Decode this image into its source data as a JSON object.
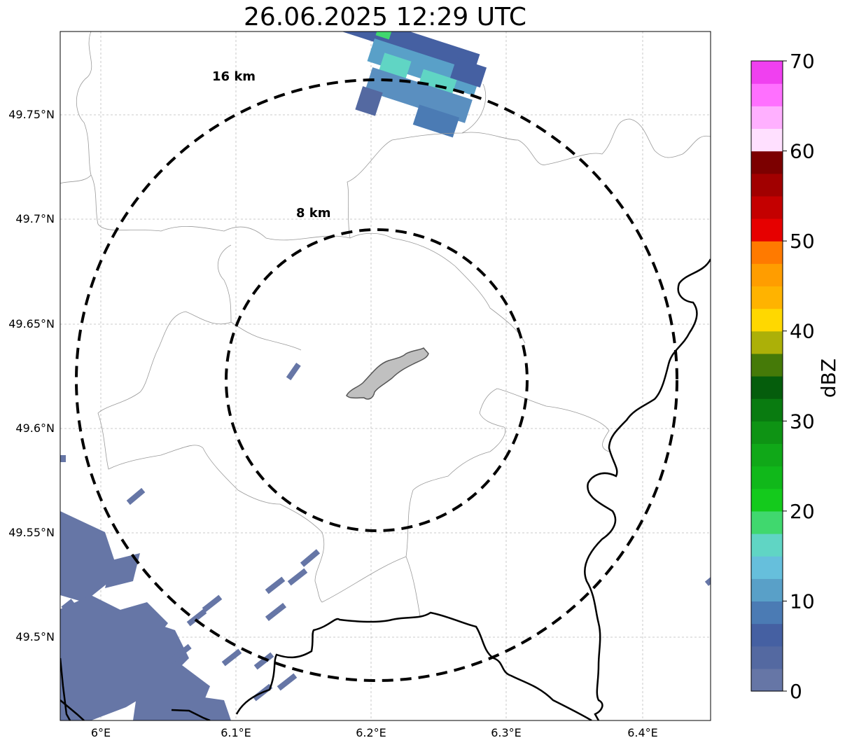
{
  "title": "26.06.2025 12:29 UTC",
  "map": {
    "lon_ticks": [
      "6°E",
      "6.1°E",
      "6.2°E",
      "6.3°E",
      "6.4°E"
    ],
    "lat_ticks": [
      "49.75°N",
      "49.7°N",
      "49.65°N",
      "49.6°N",
      "49.55°N",
      "49.5°N"
    ],
    "range_rings": [
      {
        "label": "16 km",
        "radius_km": 16
      },
      {
        "label": "8 km",
        "radius_km": 8
      }
    ],
    "radar_site_lon": 6.2,
    "radar_site_lat": 49.62,
    "gridlines": true,
    "colors": {
      "border": "#000000",
      "admin": "#999999",
      "town_fill": "#c0c0c0"
    }
  },
  "colorbar": {
    "label": "dBZ",
    "ticks": [
      "0",
      "10",
      "20",
      "30",
      "40",
      "50",
      "60",
      "70"
    ],
    "min": 0,
    "max": 70,
    "step": 2.5,
    "colors": [
      "#6676a6",
      "#5469a1",
      "#4560a2",
      "#4b7bb4",
      "#59a0c8",
      "#66bfdc",
      "#60d5c4",
      "#40d86e",
      "#14ca1c",
      "#10b81a",
      "#10a818",
      "#0e9314",
      "#097b10",
      "#055d0c",
      "#457a08",
      "#acb008",
      "#ffd800",
      "#ffb300",
      "#ff9d00",
      "#ff7a00",
      "#e60000",
      "#c40000",
      "#a10000",
      "#7c0000",
      "#ffe0ff",
      "#ffb0ff",
      "#ff70ff",
      "#f040f0"
    ]
  }
}
